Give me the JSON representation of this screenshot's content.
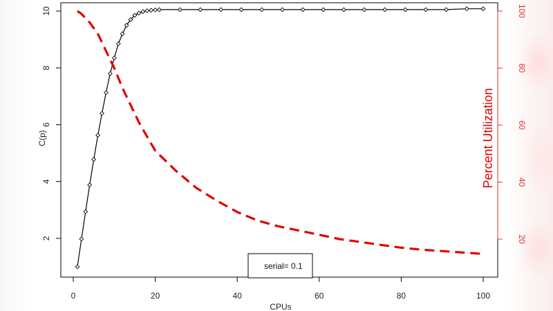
{
  "chart_data": {
    "type": "line",
    "xlabel": "CPUs",
    "ylabel": "C(p)",
    "y2label": "Percent Utilization",
    "xlim": [
      0,
      100
    ],
    "ylim": [
      0.7,
      10.3
    ],
    "y2lim": [
      7.0,
      103.0
    ],
    "xticks": [
      0,
      20,
      40,
      60,
      80,
      100
    ],
    "yticks": [
      2,
      4,
      6,
      8,
      10
    ],
    "y2ticks": [
      20,
      40,
      60,
      80,
      100
    ],
    "legend": {
      "text": "serial= 0.1",
      "position": "bottom-center"
    },
    "series": [
      {
        "axis": "left",
        "style": "solid-line-with-diamond-markers",
        "color": "#000000",
        "x": [
          1,
          2,
          3,
          4,
          5,
          6,
          7,
          8,
          9,
          10,
          11,
          12,
          13,
          14,
          15,
          16,
          17,
          18,
          19,
          20,
          21,
          26,
          31,
          36,
          41,
          46,
          51,
          56,
          61,
          66,
          71,
          76,
          81,
          86,
          91,
          96,
          100
        ],
        "y": [
          1.0,
          1.98,
          2.94,
          3.88,
          4.78,
          5.63,
          6.4,
          7.13,
          7.8,
          8.35,
          8.85,
          9.2,
          9.5,
          9.7,
          9.85,
          9.93,
          9.98,
          10.01,
          10.03,
          10.04,
          10.05,
          10.05,
          10.05,
          10.05,
          10.05,
          10.05,
          10.05,
          10.05,
          10.05,
          10.05,
          10.05,
          10.05,
          10.05,
          10.05,
          10.05,
          10.08,
          10.08
        ]
      },
      {
        "axis": "right",
        "style": "dashed-line",
        "color": "#e00000",
        "x": [
          1,
          2,
          4,
          6,
          8,
          10,
          12,
          14,
          16,
          18,
          20,
          25,
          30,
          35,
          40,
          45,
          50,
          55,
          60,
          65,
          70,
          75,
          80,
          85,
          90,
          95,
          100
        ],
        "y": [
          100,
          99,
          96,
          92,
          86,
          80,
          73,
          67,
          61,
          56,
          51,
          44,
          38,
          33.5,
          29.5,
          26.5,
          24.5,
          23,
          21.5,
          20,
          19,
          18,
          17,
          16.3,
          15.8,
          15.3,
          14.8
        ]
      }
    ]
  }
}
